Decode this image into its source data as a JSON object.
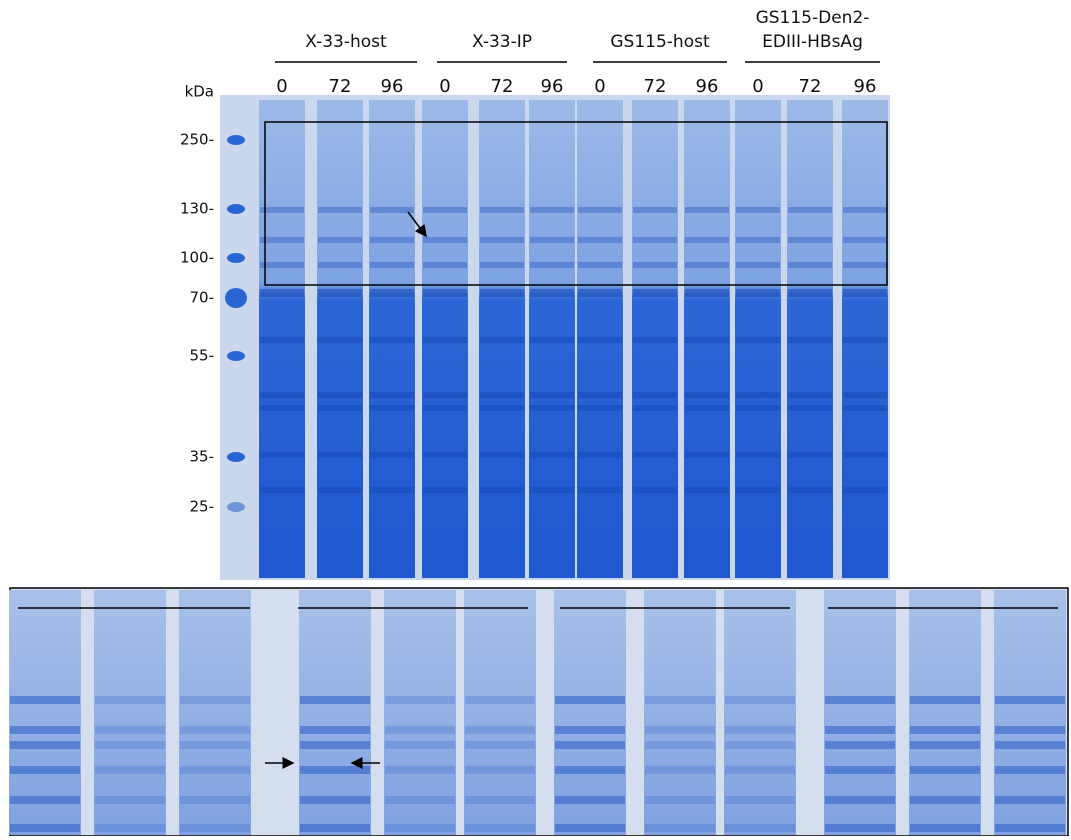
{
  "groups": [
    {
      "label": [
        "X-33-host"
      ],
      "lanes": [
        "0",
        "72",
        "96"
      ]
    },
    {
      "label": [
        "X-33-IP"
      ],
      "lanes": [
        "0",
        "72",
        "96"
      ]
    },
    {
      "label": [
        "GS115-host"
      ],
      "lanes": [
        "0",
        "72",
        "96"
      ]
    },
    {
      "label": [
        "GS115-Den2-",
        "EDIII-HBsAg"
      ],
      "lanes": [
        "0",
        "72",
        "96"
      ]
    }
  ],
  "marker": {
    "unit": "kDa",
    "labels": [
      "250-",
      "130-",
      "100-",
      "70-",
      "55-",
      "35-",
      "25-"
    ]
  }
}
